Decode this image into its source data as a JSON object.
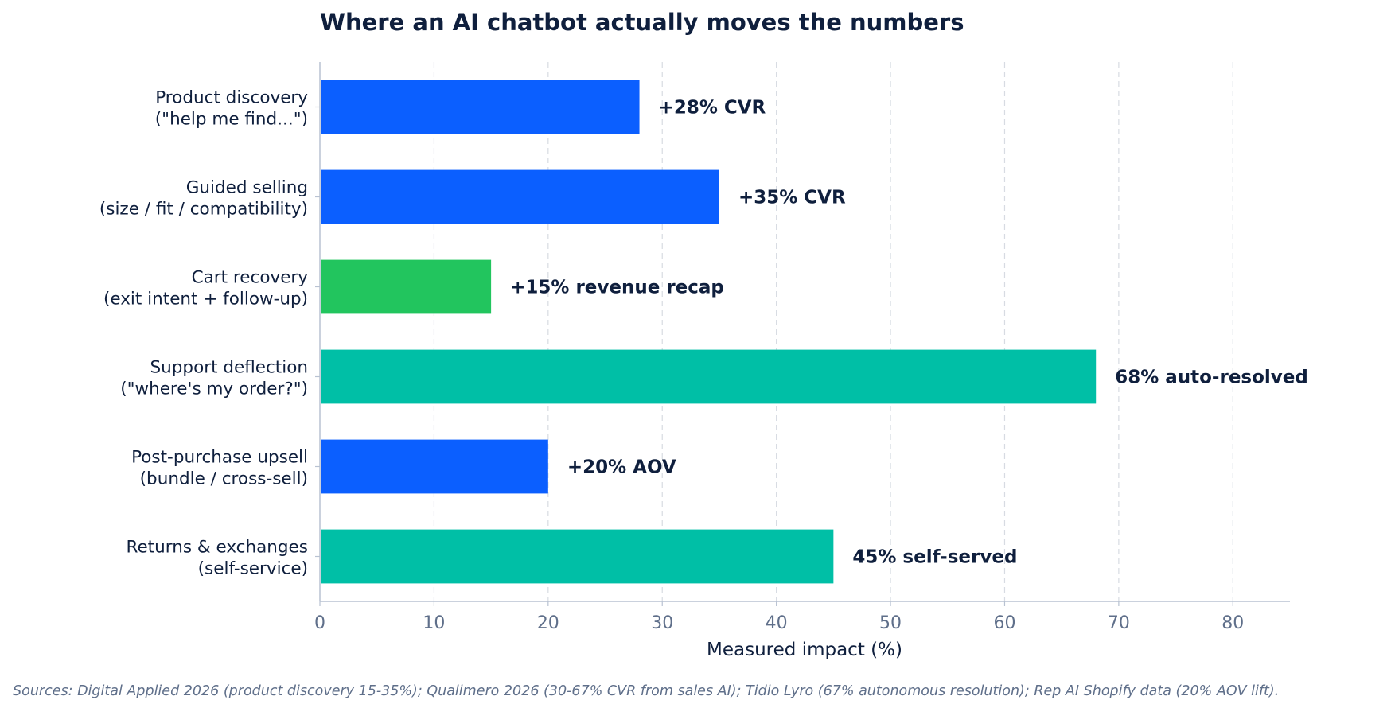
{
  "chart_data": {
    "type": "bar",
    "orientation": "horizontal",
    "title": "Where an AI chatbot actually moves the numbers",
    "xlabel": "Measured impact (%)",
    "ylabel": "",
    "xlim": [
      0,
      85
    ],
    "xticks": [
      0,
      10,
      20,
      30,
      40,
      50,
      60,
      70,
      80
    ],
    "grid": "vertical-dashed",
    "categories": [
      [
        "Product discovery",
        "(\"help me find...\")"
      ],
      [
        "Guided selling",
        "(size / fit / compatibility)"
      ],
      [
        "Cart recovery",
        "(exit intent + follow-up)"
      ],
      [
        "Support deflection",
        "(\"where's my order?\")"
      ],
      [
        "Post-purchase upsell",
        "(bundle / cross-sell)"
      ],
      [
        "Returns & exchanges",
        "(self-service)"
      ]
    ],
    "values": [
      28,
      35,
      15,
      68,
      20,
      45
    ],
    "data_labels": [
      "+28% CVR",
      "+35% CVR",
      "+15% revenue recap",
      "68% auto-resolved",
      "+20% AOV",
      "45% self-served"
    ],
    "bar_colors": [
      "#0b5fff",
      "#0b5fff",
      "#22c55e",
      "#00bfa6",
      "#0b5fff",
      "#00bfa6"
    ],
    "source_note": "Sources: Digital Applied 2026 (product discovery 15-35%); Qualimero 2026 (30-67% CVR from sales AI); Tidio Lyro (67% autonomous resolution); Rep AI Shopify data (20% AOV lift)."
  }
}
